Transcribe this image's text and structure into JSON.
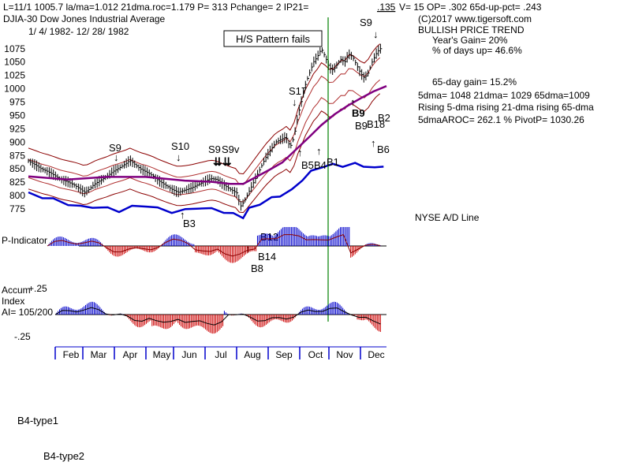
{
  "header": {
    "line1": "L=11/1  1005.7  la/ma=1.012  21dma.roc=1.179  P=   313  Pchange=   2  IP21=",
    "ip21_value": ".135",
    "line1b": "V=  15  OP=  .302  65d-up-pct=  .243",
    "title": "DJIA-30  Dow Jones Industrial Average",
    "date_range": "1/ 4/ 1982- 12/ 28/ 1982",
    "copyright": "(C)2017 www.tigersoft.com"
  },
  "stats": {
    "trend": "BULLISH PRICE TREND",
    "years_gain": "Year's Gain= 20%",
    "days_up": "% of days up= 46.6%",
    "gain65": "65-day gain= 15.2%",
    "dma": "5dma= 1048  21dma= 1029  65dma=1009",
    "rising": "Rising 5-dma rising 21-dma rising 65-dma",
    "aroc": "5dmaAROC= 262.1  %  PivotP= 1030.26"
  },
  "hs_label": "H/S Pattern fails",
  "ad_label": "NYSE A/D Line",
  "p_indicator_label": "P-Indicator",
  "accum_labels": [
    "Accum",
    "Index",
    "AI= 105/200"
  ],
  "accum_ticks": [
    "+.25",
    "-.25"
  ],
  "months": [
    "Feb",
    "Mar",
    "Apr",
    "May",
    "Jun",
    "Jul",
    "Aug",
    "Sep",
    "Oct",
    "Nov",
    "Dec"
  ],
  "footer": {
    "type1": "B4-type1",
    "type2": "B4-type2"
  },
  "colors": {
    "price": "#000000",
    "adline": "#0000cc",
    "ma65": "#800080",
    "bands": "#8b0000",
    "positive": "#0000cc",
    "negative": "#cc0000",
    "vertical": "#008000",
    "signal": "#cc0000"
  },
  "chart_data": {
    "type": "line",
    "title": "DJIA-30 Dow Jones Industrial Average",
    "ylim": [
      775,
      1085
    ],
    "y_ticks": [
      775,
      800,
      825,
      850,
      875,
      900,
      925,
      950,
      975,
      1000,
      1025,
      1050,
      1075
    ],
    "y_tick_labels": [
      "775",
      "800",
      "825",
      "850",
      "875",
      "900",
      "925",
      "950",
      "975",
      "1000",
      "1025",
      "1050",
      "1075"
    ],
    "close": [
      [
        0,
        865
      ],
      [
        5,
        858
      ],
      [
        10,
        850
      ],
      [
        15,
        845
      ],
      [
        20,
        838
      ],
      [
        25,
        830
      ],
      [
        30,
        826
      ],
      [
        35,
        820
      ],
      [
        40,
        812
      ],
      [
        43,
        806
      ],
      [
        47,
        812
      ],
      [
        50,
        820
      ],
      [
        55,
        828
      ],
      [
        60,
        835
      ],
      [
        65,
        845
      ],
      [
        70,
        852
      ],
      [
        75,
        860
      ],
      [
        78,
        866
      ],
      [
        82,
        858
      ],
      [
        86,
        850
      ],
      [
        90,
        845
      ],
      [
        95,
        838
      ],
      [
        100,
        828
      ],
      [
        105,
        820
      ],
      [
        110,
        812
      ],
      [
        115,
        806
      ],
      [
        120,
        810
      ],
      [
        125,
        814
      ],
      [
        130,
        820
      ],
      [
        135,
        826
      ],
      [
        140,
        832
      ],
      [
        145,
        830
      ],
      [
        150,
        820
      ],
      [
        155,
        812
      ],
      [
        160,
        805
      ],
      [
        163,
        780
      ],
      [
        166,
        790
      ],
      [
        170,
        810
      ],
      [
        174,
        830
      ],
      [
        178,
        850
      ],
      [
        182,
        870
      ],
      [
        186,
        885
      ],
      [
        190,
        900
      ],
      [
        194,
        905
      ],
      [
        198,
        910
      ],
      [
        201,
        890
      ],
      [
        204,
        910
      ],
      [
        207,
        950
      ],
      [
        210,
        980
      ],
      [
        213,
        1010
      ],
      [
        216,
        1030
      ],
      [
        219,
        1050
      ],
      [
        222,
        1060
      ],
      [
        225,
        1075
      ],
      [
        228,
        1060
      ],
      [
        231,
        1040
      ],
      [
        234,
        1035
      ],
      [
        237,
        1045
      ],
      [
        240,
        1055
      ],
      [
        243,
        1050
      ],
      [
        246,
        1065
      ],
      [
        249,
        1060
      ],
      [
        252,
        1045
      ],
      [
        255,
        1030
      ],
      [
        258,
        1020
      ],
      [
        261,
        1030
      ],
      [
        264,
        1050
      ],
      [
        267,
        1065
      ],
      [
        270,
        1075
      ]
    ],
    "ma65": [
      [
        0,
        836
      ],
      [
        30,
        830
      ],
      [
        60,
        835
      ],
      [
        90,
        835
      ],
      [
        120,
        828
      ],
      [
        140,
        826
      ],
      [
        155,
        822
      ],
      [
        165,
        822
      ],
      [
        175,
        835
      ],
      [
        185,
        848
      ],
      [
        195,
        862
      ],
      [
        205,
        885
      ],
      [
        215,
        908
      ],
      [
        225,
        932
      ],
      [
        235,
        952
      ],
      [
        245,
        968
      ],
      [
        255,
        982
      ],
      [
        265,
        995
      ],
      [
        275,
        1005
      ]
    ],
    "ad_line": [
      [
        0,
        803
      ],
      [
        10,
        798
      ],
      [
        20,
        792
      ],
      [
        30,
        785
      ],
      [
        40,
        778
      ],
      [
        50,
        780
      ],
      [
        60,
        775
      ],
      [
        70,
        772
      ],
      [
        80,
        778
      ],
      [
        90,
        782
      ],
      [
        100,
        775
      ],
      [
        110,
        770
      ],
      [
        120,
        772
      ],
      [
        130,
        778
      ],
      [
        140,
        774
      ],
      [
        150,
        770
      ],
      [
        158,
        765
      ],
      [
        164,
        760
      ],
      [
        170,
        775
      ],
      [
        178,
        785
      ],
      [
        186,
        795
      ],
      [
        194,
        800
      ],
      [
        202,
        810
      ],
      [
        210,
        830
      ],
      [
        218,
        845
      ],
      [
        226,
        855
      ],
      [
        234,
        858
      ],
      [
        242,
        855
      ],
      [
        250,
        860
      ],
      [
        258,
        855
      ],
      [
        266,
        852
      ],
      [
        272,
        855
      ]
    ],
    "signals": [
      "S9",
      "S10",
      "S9",
      "S9v",
      "S17",
      "S9",
      "B3",
      "B12",
      "B14",
      "B8",
      "B5",
      "B4",
      "B1",
      "B9",
      "B18",
      "B2",
      "B6"
    ],
    "x_labels": [
      "Feb",
      "Mar",
      "Apr",
      "May",
      "Jun",
      "Jul",
      "Aug",
      "Sep",
      "Oct",
      "Nov",
      "Dec"
    ]
  }
}
